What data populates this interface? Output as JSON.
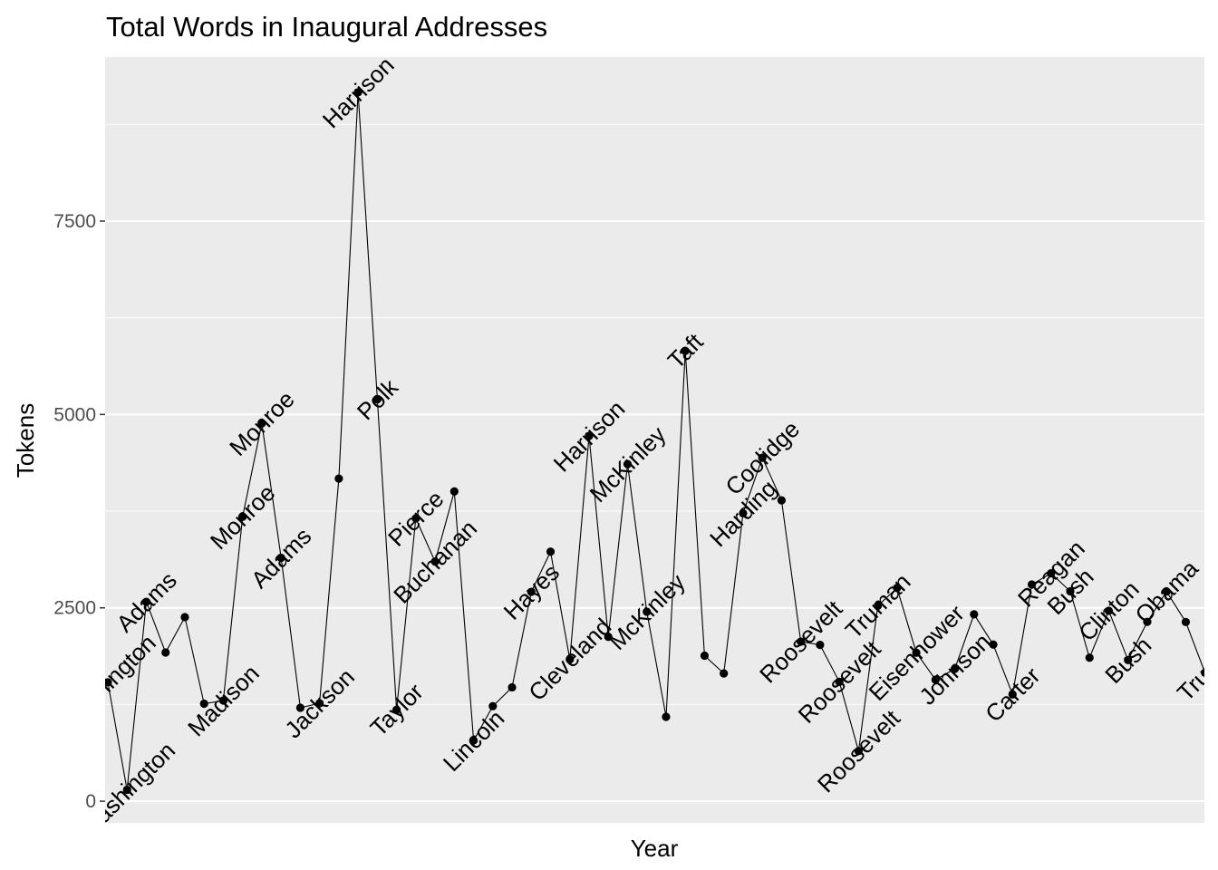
{
  "chart_data": {
    "type": "line",
    "title": "Total Words in Inaugural Addresses",
    "xlabel": "Year",
    "ylabel": "Tokens",
    "ylim": [
      -280,
      9620
    ],
    "yticks": [
      0,
      2500,
      5000,
      7500
    ],
    "grid": true,
    "legend": "none",
    "colors": {
      "panel": "#ebebeb",
      "grid": "#ffffff",
      "line": "#000000",
      "point": "#000000",
      "tick_text": "#4d4d4d"
    },
    "points": [
      {
        "y": 1537,
        "label": "Washington"
      },
      {
        "y": 147,
        "label": "Washington"
      },
      {
        "y": 2577,
        "label": "Adams"
      },
      {
        "y": 1923,
        "label": ""
      },
      {
        "y": 2380,
        "label": ""
      },
      {
        "y": 1261,
        "label": ""
      },
      {
        "y": 1302,
        "label": "Madison"
      },
      {
        "y": 3677,
        "label": "Monroe"
      },
      {
        "y": 4886,
        "label": "Monroe"
      },
      {
        "y": 3147,
        "label": "Adams"
      },
      {
        "y": 1208,
        "label": ""
      },
      {
        "y": 1267,
        "label": "Jackson"
      },
      {
        "y": 4171,
        "label": ""
      },
      {
        "y": 9165,
        "label": "Harrison"
      },
      {
        "y": 5196,
        "label": "Polk"
      },
      {
        "y": 1182,
        "label": "Taylor"
      },
      {
        "y": 3657,
        "label": "Pierce"
      },
      {
        "y": 3098,
        "label": "Buchanan"
      },
      {
        "y": 4005,
        "label": ""
      },
      {
        "y": 785,
        "label": "Lincoln"
      },
      {
        "y": 1229,
        "label": ""
      },
      {
        "y": 1472,
        "label": ""
      },
      {
        "y": 2707,
        "label": "Hayes"
      },
      {
        "y": 3226,
        "label": ""
      },
      {
        "y": 1834,
        "label": "Cleveland"
      },
      {
        "y": 4722,
        "label": "Harrison"
      },
      {
        "y": 2125,
        "label": ""
      },
      {
        "y": 4358,
        "label": "McKinley"
      },
      {
        "y": 2450,
        "label": "McKinley"
      },
      {
        "y": 1091,
        "label": ""
      },
      {
        "y": 5821,
        "label": "Taft"
      },
      {
        "y": 1882,
        "label": ""
      },
      {
        "y": 1652,
        "label": ""
      },
      {
        "y": 3723,
        "label": "Harding"
      },
      {
        "y": 4440,
        "label": "Coolidge"
      },
      {
        "y": 3890,
        "label": ""
      },
      {
        "y": 2063,
        "label": "Roosevelt"
      },
      {
        "y": 2021,
        "label": ""
      },
      {
        "y": 1544,
        "label": "Roosevelt"
      },
      {
        "y": 648,
        "label": "Roosevelt"
      },
      {
        "y": 2526,
        "label": "Truman"
      },
      {
        "y": 2757,
        "label": ""
      },
      {
        "y": 1920,
        "label": "Eisenhower"
      },
      {
        "y": 1571,
        "label": ""
      },
      {
        "y": 1710,
        "label": "Johnson"
      },
      {
        "y": 2416,
        "label": ""
      },
      {
        "y": 2025,
        "label": ""
      },
      {
        "y": 1380,
        "label": "Carter"
      },
      {
        "y": 2801,
        "label": ""
      },
      {
        "y": 2946,
        "label": "Reagan"
      },
      {
        "y": 2713,
        "label": "Bush"
      },
      {
        "y": 1855,
        "label": ""
      },
      {
        "y": 2462,
        "label": "Clinton"
      },
      {
        "y": 1825,
        "label": "Bush"
      },
      {
        "y": 2319,
        "label": ""
      },
      {
        "y": 2711,
        "label": "Obama"
      },
      {
        "y": 2317,
        "label": ""
      },
      {
        "y": 1660,
        "label": "Trump"
      }
    ]
  }
}
